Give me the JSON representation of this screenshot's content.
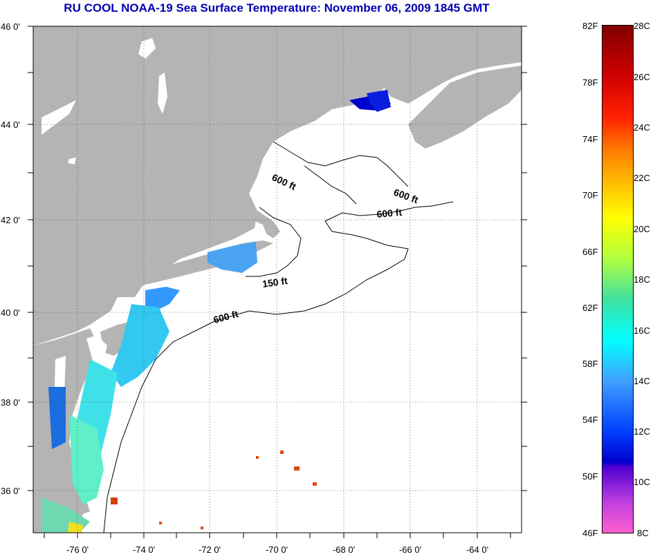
{
  "title": "RU COOL  NOAA-19  Sea Surface Temperature:  November 06, 2009 1845 GMT",
  "lat_labels": [
    "46 0'",
    "44 0'",
    "42 0'",
    "40 0'",
    "38 0'",
    "36 0'"
  ],
  "lon_labels": [
    "-76 0'",
    "-74 0'",
    "-72 0'",
    "-70 0'",
    "-68 0'",
    "-66 0'",
    "-64 0'"
  ],
  "contours": [
    "600 ft",
    "600 ft",
    "600 ft",
    "150 ft",
    "600 ft"
  ],
  "colorbar": {
    "fahrenheit": [
      "82F",
      "78F",
      "74F",
      "70F",
      "66F",
      "62F",
      "58F",
      "54F",
      "50F",
      "46F"
    ],
    "celsius": [
      "28C",
      "26C",
      "24C",
      "22C",
      "20C",
      "18C",
      "16C",
      "14C",
      "12C",
      "10C",
      "8C"
    ]
  },
  "colors": {
    "land": "#b4b4b4",
    "title": "#0000b4",
    "cold": "#0000ff",
    "warm": "#ff0000"
  }
}
